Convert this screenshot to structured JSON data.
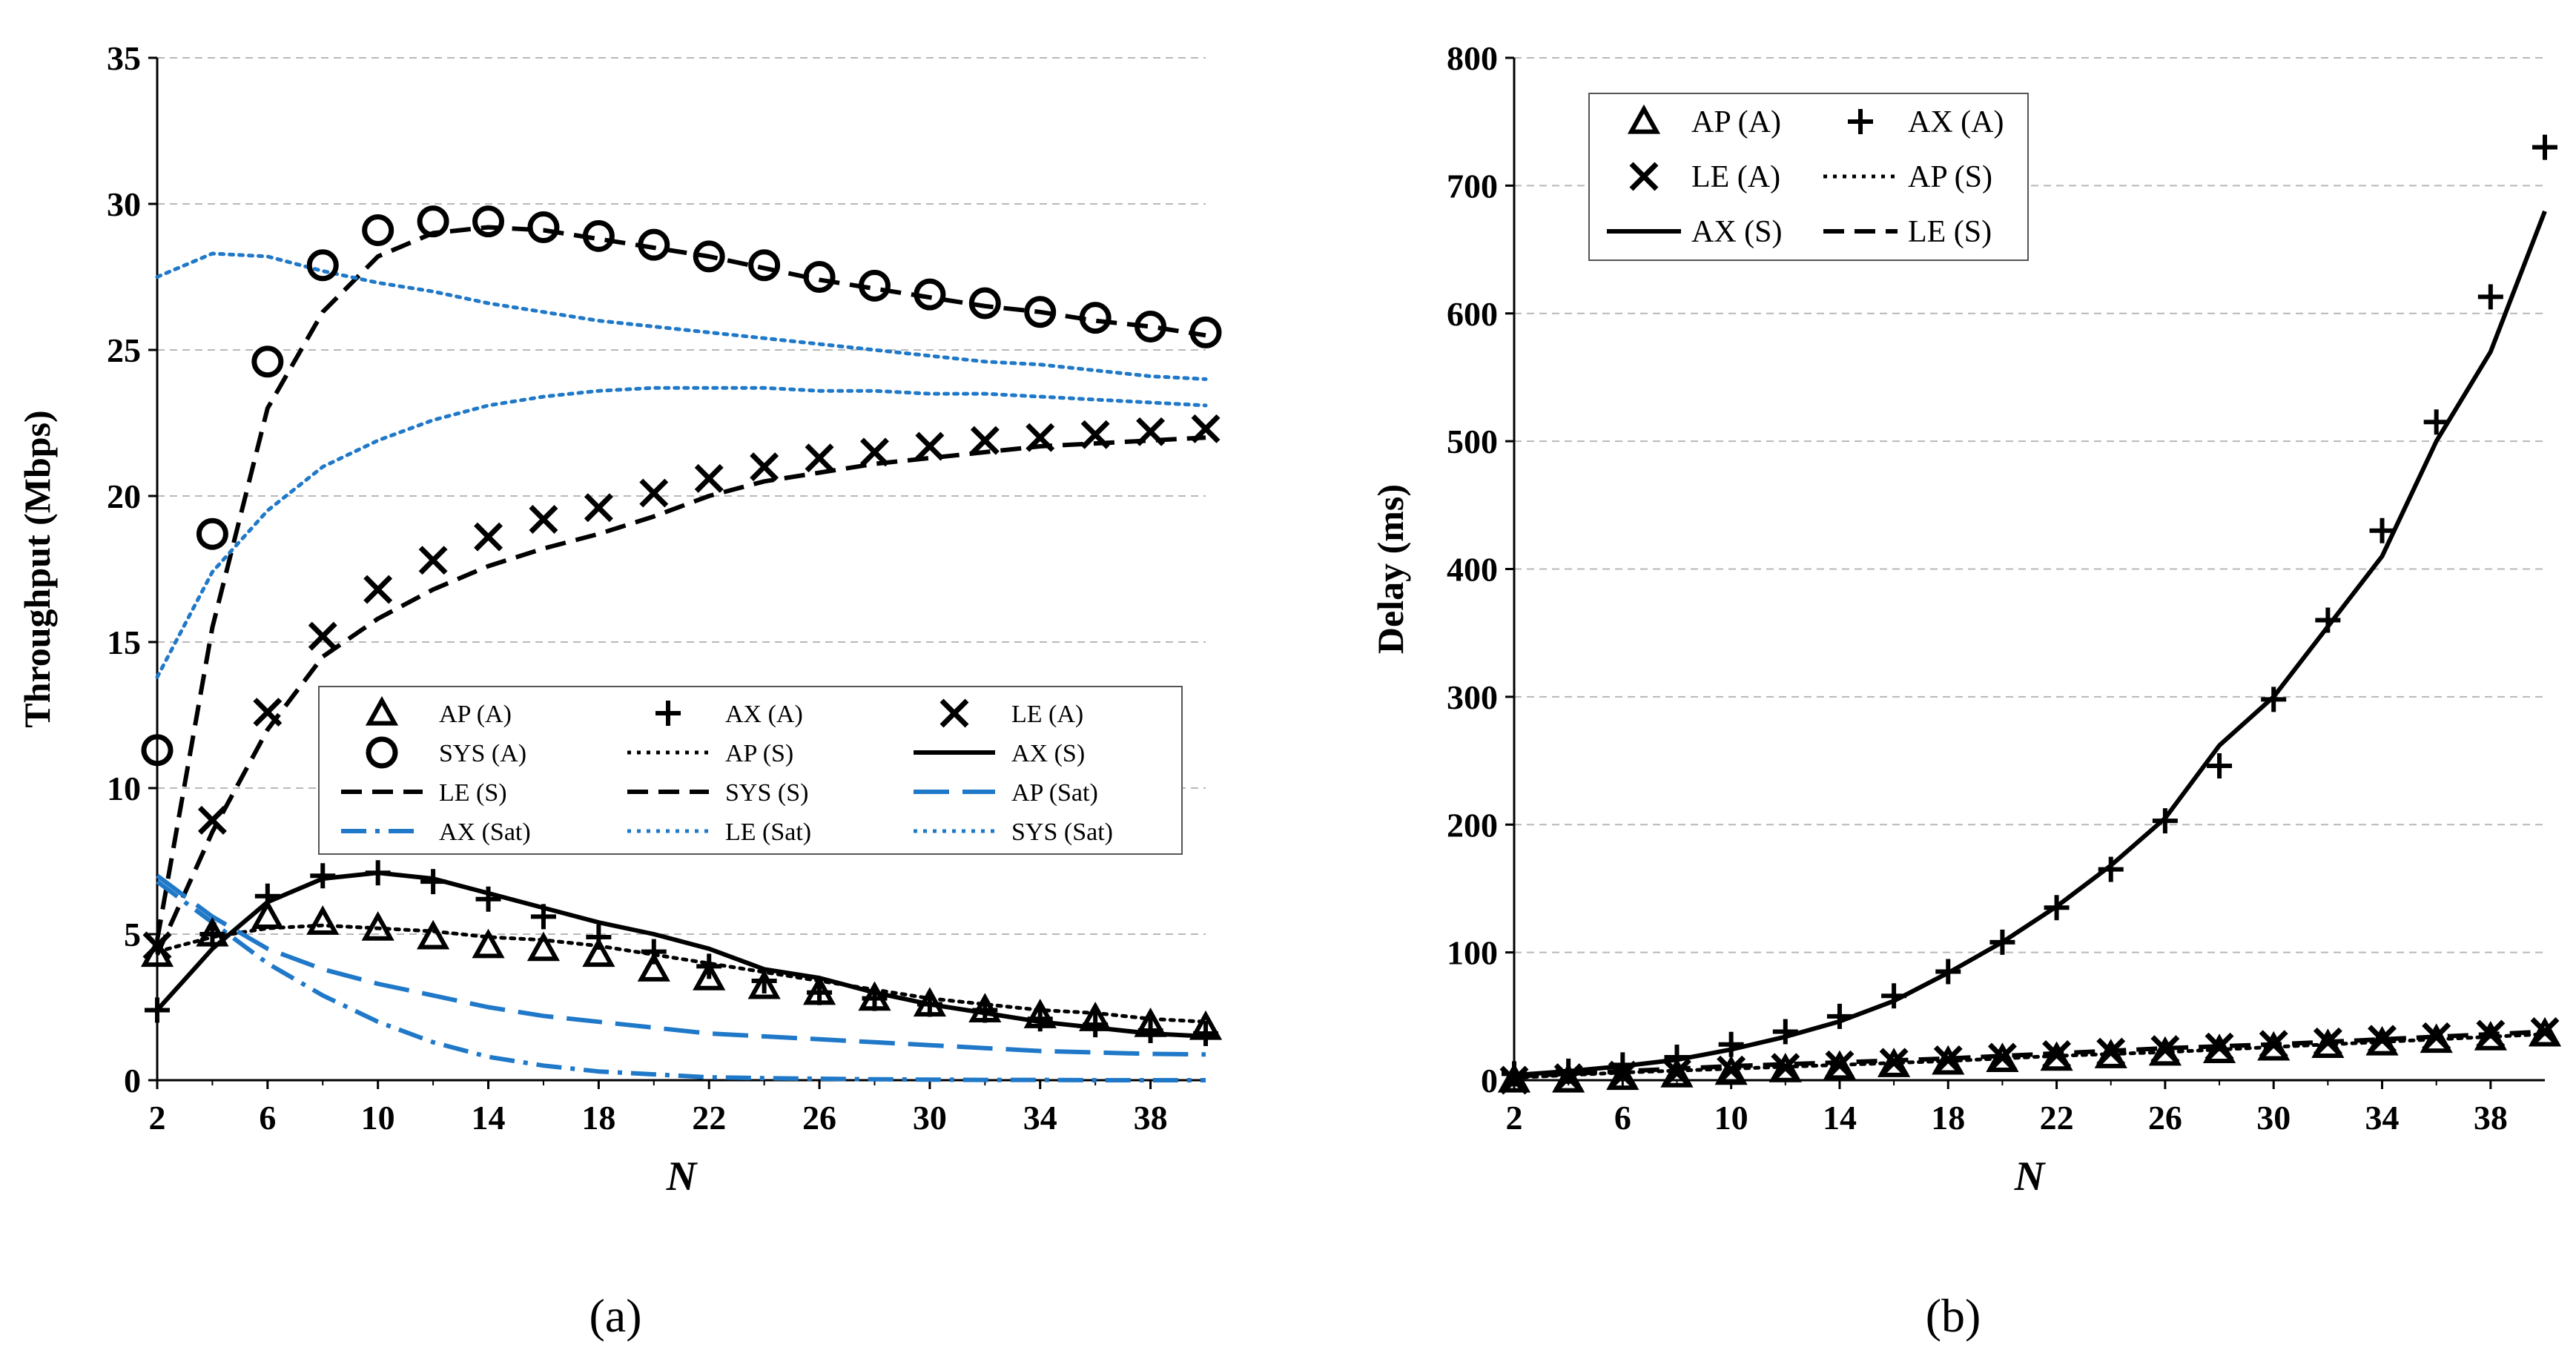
{
  "chart_data": [
    {
      "type": "line",
      "panel": "a",
      "caption": "(a)",
      "xlabel": "N",
      "ylabel": "Throughput (Mbps)",
      "xlim": [
        2,
        40
      ],
      "ylim": [
        0,
        35
      ],
      "xticks": [
        2,
        6,
        10,
        14,
        18,
        22,
        26,
        30,
        34,
        38
      ],
      "yticks": [
        0,
        5,
        10,
        15,
        20,
        25,
        30,
        35
      ],
      "grid": "horizontal dashed",
      "legend_placement": "center-right",
      "legend": [
        "AP (A)",
        "AX (A)",
        "LE (A)",
        "SYS (A)",
        "AP (S)",
        "AX (S)",
        "LE (S)",
        "SYS (S)",
        "AP (Sat)",
        "AX (Sat)",
        "LE (Sat)",
        "SYS (Sat)"
      ],
      "series": [
        {
          "name": "AP (A)",
          "style": "marker",
          "marker": "triangle",
          "color": "#000000",
          "x": [
            2,
            4,
            6,
            8,
            10,
            12,
            14,
            16,
            18,
            20,
            22,
            24,
            26,
            28,
            30,
            32,
            34,
            36,
            38,
            40
          ],
          "values": [
            4.3,
            5.0,
            5.6,
            5.4,
            5.2,
            4.9,
            4.6,
            4.5,
            4.3,
            3.8,
            3.5,
            3.2,
            3.0,
            2.8,
            2.6,
            2.4,
            2.2,
            2.1,
            1.9,
            1.8
          ]
        },
        {
          "name": "AX (A)",
          "style": "marker",
          "marker": "plus",
          "color": "#000000",
          "x": [
            2,
            4,
            6,
            8,
            10,
            12,
            14,
            16,
            18,
            20,
            22,
            24,
            26,
            28,
            30,
            32,
            34,
            36,
            38,
            40
          ],
          "values": [
            2.4,
            5.0,
            6.3,
            7.0,
            7.1,
            6.8,
            6.2,
            5.6,
            4.9,
            4.4,
            3.9,
            3.4,
            3.0,
            2.8,
            2.6,
            2.4,
            2.1,
            1.9,
            1.7,
            1.6
          ]
        },
        {
          "name": "LE (A)",
          "style": "marker",
          "marker": "x",
          "color": "#000000",
          "x": [
            2,
            4,
            6,
            8,
            10,
            12,
            14,
            16,
            18,
            20,
            22,
            24,
            26,
            28,
            30,
            32,
            34,
            36,
            38,
            40
          ],
          "values": [
            4.6,
            8.9,
            12.6,
            15.2,
            16.8,
            17.8,
            18.6,
            19.2,
            19.6,
            20.1,
            20.6,
            21.0,
            21.3,
            21.5,
            21.7,
            21.9,
            22.0,
            22.1,
            22.2,
            22.3
          ]
        },
        {
          "name": "SYS (A)",
          "style": "marker",
          "marker": "circle",
          "color": "#000000",
          "x": [
            2,
            4,
            6,
            8,
            10,
            12,
            14,
            16,
            18,
            20,
            22,
            24,
            26,
            28,
            30,
            32,
            34,
            36,
            38,
            40
          ],
          "values": [
            11.3,
            18.7,
            24.6,
            27.9,
            29.1,
            29.4,
            29.4,
            29.2,
            28.9,
            28.6,
            28.2,
            27.9,
            27.5,
            27.2,
            26.9,
            26.6,
            26.3,
            26.1,
            25.8,
            25.6
          ]
        },
        {
          "name": "AP (S)",
          "style": "dotted",
          "color": "#000000",
          "x": [
            2,
            4,
            6,
            8,
            10,
            12,
            14,
            16,
            18,
            20,
            22,
            24,
            26,
            28,
            30,
            32,
            34,
            36,
            38,
            40
          ],
          "values": [
            4.4,
            4.9,
            5.2,
            5.3,
            5.2,
            5.1,
            4.9,
            4.8,
            4.6,
            4.3,
            4.0,
            3.7,
            3.4,
            3.1,
            2.8,
            2.6,
            2.4,
            2.3,
            2.1,
            2.0
          ]
        },
        {
          "name": "AX (S)",
          "style": "solid",
          "color": "#000000",
          "x": [
            2,
            4,
            6,
            8,
            10,
            12,
            14,
            16,
            18,
            20,
            22,
            24,
            26,
            28,
            30,
            32,
            34,
            36,
            38,
            40
          ],
          "values": [
            2.4,
            4.5,
            6.1,
            6.9,
            7.1,
            6.9,
            6.4,
            5.9,
            5.4,
            5.0,
            4.5,
            3.8,
            3.5,
            3.0,
            2.6,
            2.3,
            2.0,
            1.8,
            1.6,
            1.5
          ]
        },
        {
          "name": "LE (S)",
          "style": "dashed",
          "color": "#000000",
          "x": [
            2,
            4,
            6,
            8,
            10,
            12,
            14,
            16,
            18,
            20,
            22,
            24,
            26,
            28,
            30,
            32,
            34,
            36,
            38,
            40
          ],
          "values": [
            4.3,
            8.5,
            12.0,
            14.5,
            15.8,
            16.8,
            17.6,
            18.2,
            18.7,
            19.3,
            20.0,
            20.5,
            20.8,
            21.1,
            21.3,
            21.5,
            21.7,
            21.8,
            21.9,
            22.0
          ]
        },
        {
          "name": "SYS (S)",
          "style": "dashed",
          "color": "#000000",
          "x": [
            2,
            4,
            6,
            8,
            10,
            12,
            14,
            16,
            18,
            20,
            22,
            24,
            26,
            28,
            30,
            32,
            34,
            36,
            38,
            40
          ],
          "values": [
            4.8,
            15.5,
            23.0,
            26.3,
            28.2,
            29.0,
            29.2,
            29.1,
            28.8,
            28.5,
            28.2,
            27.8,
            27.4,
            27.1,
            26.8,
            26.5,
            26.3,
            26.0,
            25.8,
            25.5
          ]
        },
        {
          "name": "AP (Sat)",
          "style": "long-dash",
          "color": "#1f78c8",
          "x": [
            2,
            4,
            6,
            8,
            10,
            12,
            14,
            16,
            18,
            20,
            22,
            24,
            26,
            28,
            30,
            32,
            34,
            36,
            38,
            40
          ],
          "values": [
            7.0,
            5.6,
            4.5,
            3.8,
            3.3,
            2.9,
            2.5,
            2.2,
            2.0,
            1.8,
            1.6,
            1.5,
            1.4,
            1.3,
            1.2,
            1.1,
            1.0,
            0.95,
            0.9,
            0.88
          ]
        },
        {
          "name": "AX (Sat)",
          "style": "dash-dot",
          "color": "#1f78c8",
          "x": [
            2,
            4,
            6,
            8,
            10,
            12,
            14,
            16,
            18,
            20,
            22,
            24,
            26,
            28,
            30,
            32,
            34,
            36,
            38,
            40
          ],
          "values": [
            6.8,
            5.4,
            4.0,
            2.9,
            2.0,
            1.3,
            0.8,
            0.5,
            0.3,
            0.2,
            0.1,
            0.07,
            0.05,
            0.03,
            0.02,
            0.01,
            0.01,
            0.0,
            0.0,
            0.0
          ]
        },
        {
          "name": "LE (Sat)",
          "style": "dotted",
          "color": "#1f78c8",
          "x": [
            2,
            4,
            6,
            8,
            10,
            12,
            14,
            16,
            18,
            20,
            22,
            24,
            26,
            28,
            30,
            32,
            34,
            36,
            38,
            40
          ],
          "values": [
            13.8,
            17.4,
            19.5,
            21.0,
            21.9,
            22.6,
            23.1,
            23.4,
            23.6,
            23.7,
            23.7,
            23.7,
            23.6,
            23.6,
            23.5,
            23.5,
            23.4,
            23.3,
            23.2,
            23.1
          ]
        },
        {
          "name": "SYS (Sat)",
          "style": "dotted",
          "color": "#1f78c8",
          "x": [
            2,
            4,
            6,
            8,
            10,
            12,
            14,
            16,
            18,
            20,
            22,
            24,
            26,
            28,
            30,
            32,
            34,
            36,
            38,
            40
          ],
          "values": [
            27.5,
            28.3,
            28.2,
            27.7,
            27.3,
            27.0,
            26.6,
            26.3,
            26.0,
            25.8,
            25.6,
            25.4,
            25.2,
            25.0,
            24.8,
            24.6,
            24.5,
            24.3,
            24.1,
            24.0
          ]
        }
      ]
    },
    {
      "type": "line",
      "panel": "b",
      "caption": "(b)",
      "xlabel": "N",
      "ylabel": "Delay (ms)",
      "xlim": [
        2,
        40
      ],
      "ylim": [
        0,
        800
      ],
      "xticks": [
        2,
        6,
        10,
        14,
        18,
        22,
        26,
        30,
        34,
        38
      ],
      "yticks": [
        0,
        100,
        200,
        300,
        400,
        500,
        600,
        700,
        800
      ],
      "grid": "horizontal dashed",
      "legend_placement": "top-left",
      "legend": [
        "AP (A)",
        "AX (A)",
        "LE (A)",
        "AP (S)",
        "AX (S)",
        "LE (S)"
      ],
      "series": [
        {
          "name": "AP (A)",
          "style": "marker",
          "marker": "triangle",
          "color": "#000000",
          "x": [
            2,
            4,
            6,
            8,
            10,
            12,
            14,
            16,
            18,
            20,
            22,
            24,
            26,
            28,
            30,
            32,
            34,
            36,
            38,
            40
          ],
          "values": [
            0,
            0,
            2,
            4,
            6,
            8,
            10,
            12,
            14,
            16,
            17,
            19,
            21,
            23,
            25,
            27,
            29,
            31,
            33,
            36
          ]
        },
        {
          "name": "AX (A)",
          "style": "marker",
          "marker": "plus",
          "color": "#000000",
          "x": [
            2,
            4,
            6,
            8,
            10,
            12,
            14,
            16,
            18,
            20,
            22,
            24,
            26,
            28,
            30,
            32,
            34,
            36,
            38,
            40
          ],
          "values": [
            5,
            7,
            12,
            18,
            28,
            38,
            50,
            66,
            85,
            108,
            135,
            165,
            203,
            246,
            298,
            360,
            430,
            515,
            613,
            730
          ]
        },
        {
          "name": "LE (A)",
          "style": "marker",
          "marker": "x",
          "color": "#000000",
          "x": [
            2,
            4,
            6,
            8,
            10,
            12,
            14,
            16,
            18,
            20,
            22,
            24,
            26,
            28,
            30,
            32,
            34,
            36,
            38,
            40
          ],
          "values": [
            0,
            2,
            4,
            6,
            8,
            10,
            12,
            14,
            16,
            18,
            20,
            22,
            24,
            26,
            28,
            30,
            32,
            34,
            36,
            38
          ]
        },
        {
          "name": "AP (S)",
          "style": "dotted",
          "color": "#000000",
          "x": [
            2,
            6,
            10,
            14,
            18,
            22,
            26,
            30,
            34,
            38,
            40
          ],
          "values": [
            2,
            6,
            9,
            12,
            15,
            19,
            22,
            26,
            30,
            34,
            36
          ]
        },
        {
          "name": "AX (S)",
          "style": "solid",
          "color": "#000000",
          "x": [
            2,
            4,
            6,
            8,
            10,
            12,
            14,
            16,
            18,
            20,
            22,
            24,
            26,
            28,
            30,
            32,
            34,
            36,
            38,
            40
          ],
          "values": [
            4,
            7,
            11,
            16,
            24,
            34,
            46,
            62,
            84,
            108,
            136,
            168,
            205,
            262,
            300,
            355,
            410,
            500,
            570,
            680
          ]
        },
        {
          "name": "LE (S)",
          "style": "dashed",
          "color": "#000000",
          "x": [
            2,
            6,
            10,
            14,
            18,
            22,
            26,
            30,
            34,
            38,
            40
          ],
          "values": [
            3,
            7,
            11,
            14,
            17,
            21,
            25,
            28,
            32,
            36,
            38
          ]
        }
      ]
    }
  ]
}
